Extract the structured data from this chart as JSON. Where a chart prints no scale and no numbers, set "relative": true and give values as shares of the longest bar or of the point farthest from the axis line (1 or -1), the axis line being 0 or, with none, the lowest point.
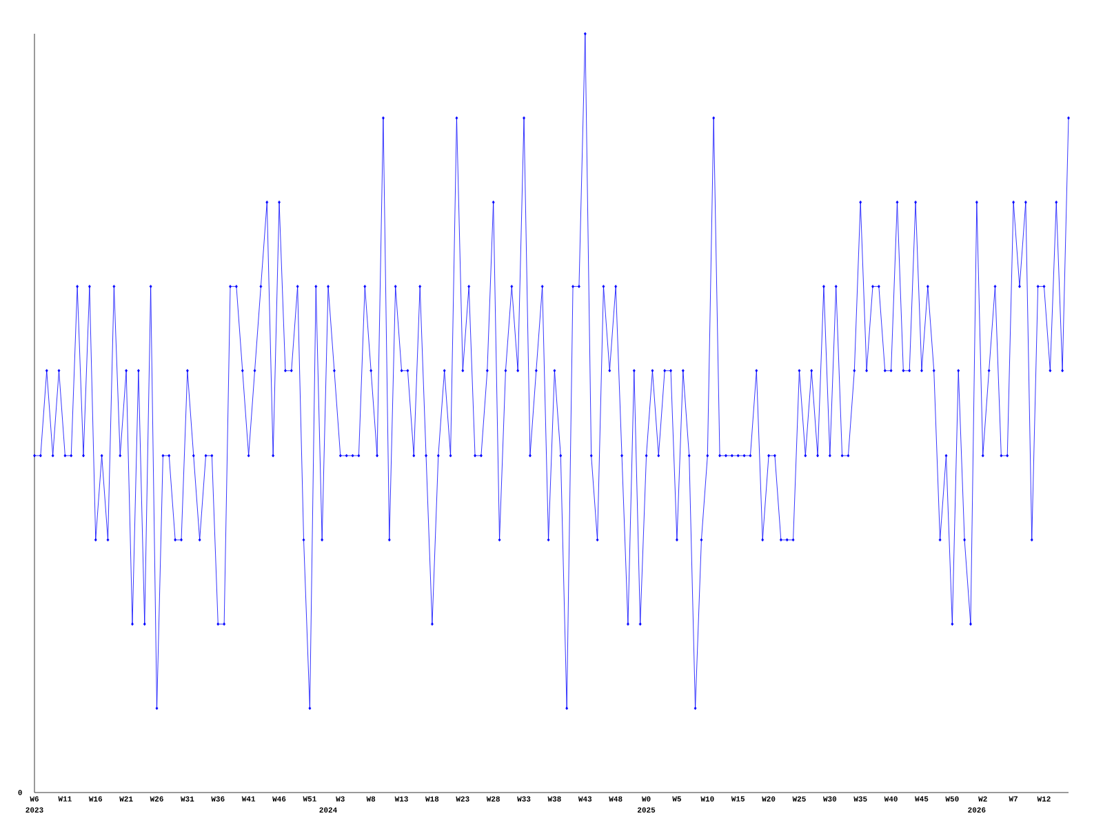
{
  "chart_data": {
    "type": "line",
    "relative": true,
    "marker": "diamond",
    "line_style": "solid",
    "grid": false,
    "categories": [
      "W6",
      null,
      null,
      null,
      null,
      "W11",
      null,
      null,
      null,
      null,
      "W16",
      null,
      null,
      null,
      null,
      "W21",
      null,
      null,
      null,
      null,
      "W26",
      null,
      null,
      null,
      null,
      "W31",
      null,
      null,
      null,
      null,
      "W36",
      null,
      null,
      null,
      null,
      "W41",
      null,
      null,
      null,
      null,
      "W46",
      null,
      null,
      null,
      null,
      "W51",
      null,
      null,
      null,
      null,
      "W3",
      null,
      null,
      null,
      null,
      "W8",
      null,
      null,
      null,
      null,
      "W13",
      null,
      null,
      null,
      null,
      "W18",
      null,
      null,
      null,
      null,
      "W23",
      null,
      null,
      null,
      null,
      "W28",
      null,
      null,
      null,
      null,
      "W33",
      null,
      null,
      null,
      null,
      "W38",
      null,
      null,
      null,
      null,
      "W43",
      null,
      null,
      null,
      null,
      "W48",
      null,
      null,
      null,
      null,
      "W0",
      null,
      null,
      null,
      null,
      "W5",
      null,
      null,
      null,
      null,
      "W10",
      null,
      null,
      null,
      null,
      "W15",
      null,
      null,
      null,
      null,
      "W20",
      null,
      null,
      null,
      null,
      "W25",
      null,
      null,
      null,
      null,
      "W30",
      null,
      null,
      null,
      null,
      "W35",
      null,
      null,
      null,
      null,
      "W40",
      null,
      null,
      null,
      null,
      "W45",
      null,
      null,
      null,
      null,
      "W50",
      null,
      null,
      null,
      null,
      "W2",
      null,
      null,
      null,
      null,
      "W7",
      null,
      null,
      null,
      null,
      "W12",
      null,
      null,
      null,
      null
    ],
    "series": [
      {
        "color": "#0000ff",
        "values": [
          0.444,
          0.444,
          0.556,
          0.444,
          0.556,
          0.444,
          0.444,
          0.667,
          0.444,
          0.667,
          0.333,
          0.444,
          0.333,
          0.667,
          0.444,
          0.556,
          0.222,
          0.556,
          0.222,
          0.667,
          0.111,
          0.444,
          0.444,
          0.333,
          0.333,
          0.556,
          0.444,
          0.333,
          0.444,
          0.444,
          0.222,
          0.222,
          0.667,
          0.667,
          0.556,
          0.444,
          0.556,
          0.667,
          0.778,
          0.444,
          0.778,
          0.556,
          0.556,
          0.667,
          0.333,
          0.111,
          0.667,
          0.333,
          0.667,
          0.556,
          0.444,
          0.444,
          0.444,
          0.444,
          0.667,
          0.556,
          0.444,
          0.889,
          0.333,
          0.667,
          0.556,
          0.556,
          0.444,
          0.667,
          0.444,
          0.222,
          0.444,
          0.556,
          0.444,
          0.889,
          0.556,
          0.667,
          0.444,
          0.444,
          0.556,
          0.778,
          0.333,
          0.556,
          0.667,
          0.556,
          0.889,
          0.444,
          0.556,
          0.667,
          0.333,
          0.556,
          0.444,
          0.111,
          0.667,
          0.667,
          1,
          0.444,
          0.333,
          0.667,
          0.556,
          0.667,
          0.444,
          0.222,
          0.556,
          0.222,
          0.444,
          0.556,
          0.444,
          0.556,
          0.556,
          0.333,
          0.556,
          0.444,
          0.111,
          0.333,
          0.444,
          0.889,
          0.444,
          0.444,
          0.444,
          0.444,
          0.444,
          0.444,
          0.556,
          0.333,
          0.444,
          0.444,
          0.333,
          0.333,
          0.333,
          0.556,
          0.444,
          0.556,
          0.444,
          0.667,
          0.444,
          0.667,
          0.444,
          0.444,
          0.556,
          0.778,
          0.556,
          0.667,
          0.667,
          0.556,
          0.556,
          0.778,
          0.556,
          0.556,
          0.778,
          0.556,
          0.667,
          0.556,
          0.333,
          0.444,
          0.222,
          0.556,
          0.333,
          0.222,
          0.778,
          0.444,
          0.556,
          0.667,
          0.444,
          0.444,
          0.778,
          0.667,
          0.778,
          0.333,
          0.667,
          0.667,
          0.556,
          0.778,
          0.556,
          0.889
        ]
      }
    ],
    "annotations": [
      "0",
      "2023",
      "2024",
      "2025",
      "2026"
    ]
  }
}
